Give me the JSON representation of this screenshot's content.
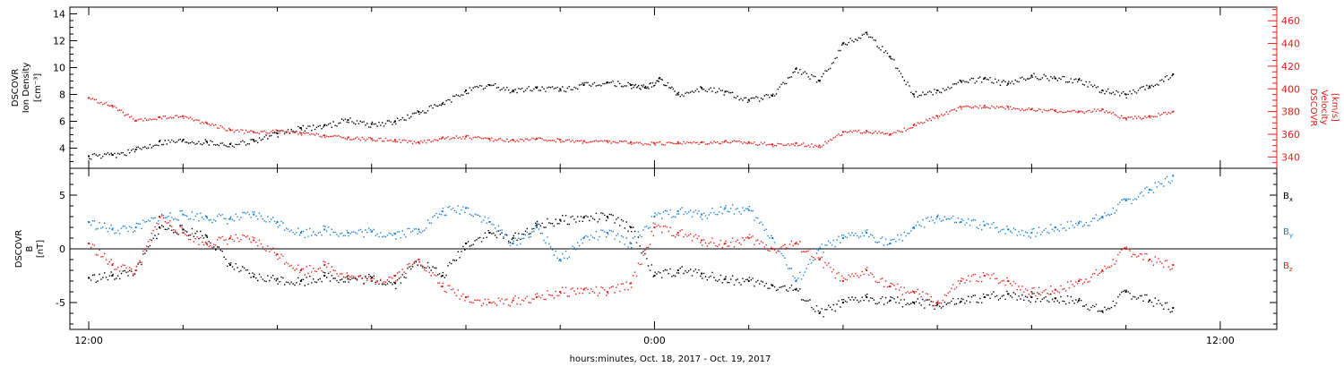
{
  "colors": {
    "black": "#000000",
    "red": "#e0201b",
    "blue": "#1a7fd4"
  },
  "xaxis": {
    "label": "hours:minutes, Oct. 18, 2017 - Oct. 19, 2017",
    "range_hours": [
      -0.4,
      25.2
    ],
    "major_ticks": [
      {
        "t": 0,
        "label": "12:00"
      },
      {
        "t": 12,
        "label": "0:00"
      },
      {
        "t": 24,
        "label": "12:00"
      }
    ],
    "minor_step_hours": 2
  },
  "chart_data": [
    {
      "type": "scatter",
      "panel": "density-velocity",
      "ylabel_left": [
        "DSCOVR",
        "Ion Density",
        "[cm⁻³]"
      ],
      "ylabel_right": [
        "DSCOVR",
        "Velocity",
        "[km/s]"
      ],
      "ylim_left": [
        2.5,
        14.5
      ],
      "yticks_left": [
        4,
        6,
        8,
        10,
        12,
        14
      ],
      "ylim_right": [
        330,
        472
      ],
      "yticks_right": [
        340,
        360,
        380,
        400,
        420,
        440,
        460
      ],
      "series": [
        {
          "name": "Ion Density",
          "axis": "left",
          "color": "black",
          "t": [
            0,
            0.5,
            1,
            1.5,
            2,
            2.5,
            3,
            3.5,
            4,
            4.5,
            5,
            5.5,
            6,
            6.5,
            7,
            7.5,
            8,
            8.5,
            9,
            9.5,
            10,
            10.5,
            11,
            11.5,
            11.8,
            12.1,
            12.5,
            13,
            13.5,
            14,
            14.5,
            15,
            15.5,
            16,
            16.5,
            17,
            17.5,
            18,
            18.5,
            19,
            19.5,
            20,
            20.5,
            21,
            21.5,
            22,
            22.5,
            23
          ],
          "values": [
            3.4,
            3.5,
            3.9,
            4.5,
            4.6,
            4.5,
            4.3,
            4.6,
            5.1,
            5.5,
            5.7,
            6.1,
            5.8,
            6.0,
            6.7,
            7.3,
            8.3,
            8.7,
            8.3,
            8.5,
            8.4,
            8.7,
            8.9,
            8.7,
            8.5,
            9.2,
            8.0,
            8.5,
            8.2,
            7.6,
            7.9,
            9.9,
            9.0,
            11.8,
            12.6,
            10.8,
            8.0,
            8.3,
            9.0,
            9.2,
            8.8,
            9.4,
            9.2,
            9.1,
            8.3,
            8.0,
            8.6,
            9.5
          ]
        },
        {
          "name": "Velocity",
          "axis": "right",
          "color": "red",
          "t": [
            0,
            0.5,
            1,
            1.5,
            2,
            2.5,
            3,
            3.5,
            4,
            4.5,
            5,
            5.5,
            6,
            6.5,
            7,
            7.5,
            8,
            8.5,
            9,
            9.5,
            10,
            10.5,
            11,
            11.5,
            12,
            12.5,
            13,
            13.5,
            14,
            14.5,
            15,
            15.5,
            16,
            16.5,
            17,
            17.5,
            18,
            18.5,
            19,
            19.5,
            20,
            20.5,
            21,
            21.5,
            22,
            22.5,
            23
          ],
          "values": [
            392,
            385,
            372,
            375,
            376,
            370,
            364,
            362,
            363,
            361,
            359,
            357,
            356,
            355,
            353,
            357,
            358,
            356,
            355,
            356,
            355,
            354,
            354,
            353,
            352,
            353,
            353,
            354,
            353,
            351,
            352,
            350,
            362,
            363,
            360,
            368,
            376,
            384,
            385,
            384,
            382,
            381,
            380,
            382,
            374,
            376,
            380
          ]
        }
      ]
    },
    {
      "type": "scatter",
      "panel": "magnetic-field",
      "ylabel_left": [
        "DSCOVR",
        "B",
        "[nT]"
      ],
      "ylim": [
        -7.5,
        7.5
      ],
      "yticks": [
        -5,
        0,
        5
      ],
      "zero_line": true,
      "legend": [
        {
          "name": "Bx",
          "base": "B",
          "sub": "x",
          "color": "black"
        },
        {
          "name": "By",
          "base": "B",
          "sub": "y",
          "color": "blue"
        },
        {
          "name": "Bz",
          "base": "B",
          "sub": "z",
          "color": "red"
        }
      ],
      "series": [
        {
          "name": "Bx",
          "color": "black",
          "t": [
            0,
            0.5,
            1,
            1.5,
            2,
            2.5,
            3,
            3.5,
            4,
            4.5,
            5,
            5.5,
            6,
            6.5,
            7,
            7.5,
            8,
            8.5,
            9,
            9.5,
            10,
            10.5,
            11,
            11.5,
            12,
            12.5,
            13,
            13.5,
            14,
            14.5,
            15,
            15.5,
            16,
            16.5,
            17,
            17.5,
            18,
            18.5,
            19,
            19.5,
            20,
            20.5,
            21,
            21.5,
            22,
            22.5,
            23
          ],
          "values": [
            -2.7,
            -2.5,
            -2.0,
            2.0,
            1.8,
            1.2,
            -1.5,
            -2.6,
            -2.8,
            -3.0,
            -2.5,
            -2.8,
            -2.7,
            -3.2,
            -1.0,
            -2.5,
            0.5,
            1.5,
            1.0,
            2.2,
            2.7,
            2.9,
            3.0,
            2.0,
            -2.5,
            -2.0,
            -2.3,
            -2.8,
            -3.0,
            -3.4,
            -3.8,
            -6.0,
            -5.0,
            -4.5,
            -4.8,
            -5.0,
            -5.2,
            -4.9,
            -4.5,
            -4.2,
            -4.5,
            -4.6,
            -4.8,
            -5.8,
            -4.0,
            -4.8,
            -5.5
          ]
        },
        {
          "name": "By",
          "color": "blue",
          "t": [
            0,
            0.5,
            1,
            1.5,
            2,
            2.5,
            3,
            3.5,
            4,
            4.5,
            5,
            5.5,
            6,
            6.5,
            7,
            7.5,
            8,
            8.5,
            9,
            9.5,
            10,
            10.5,
            11,
            11.5,
            12,
            12.5,
            13,
            13.5,
            14,
            14.5,
            15,
            15.5,
            16,
            16.5,
            17,
            17.5,
            18,
            18.5,
            19,
            19.5,
            20,
            20.5,
            21,
            21.5,
            22,
            22.5,
            23
          ],
          "values": [
            2.5,
            1.8,
            2.0,
            3.0,
            3.2,
            3.0,
            2.8,
            3.2,
            2.5,
            1.5,
            1.8,
            1.5,
            1.6,
            1.4,
            1.8,
            3.5,
            3.8,
            2.5,
            0.5,
            2.0,
            -1.0,
            1.0,
            1.5,
            0.5,
            3.0,
            3.5,
            3.2,
            3.8,
            3.6,
            1.0,
            -3.0,
            0.0,
            1.0,
            1.5,
            0.5,
            2.0,
            3.0,
            2.5,
            2.2,
            1.8,
            1.5,
            2.0,
            2.4,
            3.0,
            4.5,
            5.5,
            6.8
          ]
        },
        {
          "name": "Bz",
          "color": "red",
          "t": [
            0,
            0.5,
            1,
            1.5,
            2,
            2.5,
            3,
            3.5,
            4,
            4.5,
            5,
            5.5,
            6,
            6.5,
            7,
            7.5,
            8,
            8.5,
            9,
            9.5,
            10,
            10.5,
            11,
            11.5,
            12,
            12.5,
            13,
            13.5,
            14,
            14.5,
            15,
            15.5,
            16,
            16.5,
            17,
            17.5,
            18,
            18.5,
            19,
            19.5,
            20,
            20.5,
            21,
            21.5,
            22,
            22.5,
            23
          ],
          "values": [
            0.5,
            -1.5,
            -2.0,
            3.0,
            1.5,
            0.5,
            1.0,
            0.8,
            -0.5,
            -2.0,
            -1.5,
            -2.5,
            -3.0,
            -2.5,
            -1.0,
            -3.5,
            -4.5,
            -5.0,
            -4.8,
            -4.5,
            -4.0,
            -3.8,
            -4.0,
            -3.2,
            2.0,
            1.5,
            0.8,
            0.5,
            1.0,
            0.0,
            0.5,
            -1.0,
            -3.0,
            -2.0,
            -3.5,
            -4.0,
            -5.0,
            -3.0,
            -2.5,
            -3.0,
            -4.0,
            -3.8,
            -3.0,
            -2.0,
            0.0,
            -1.0,
            -1.5
          ]
        }
      ]
    }
  ]
}
